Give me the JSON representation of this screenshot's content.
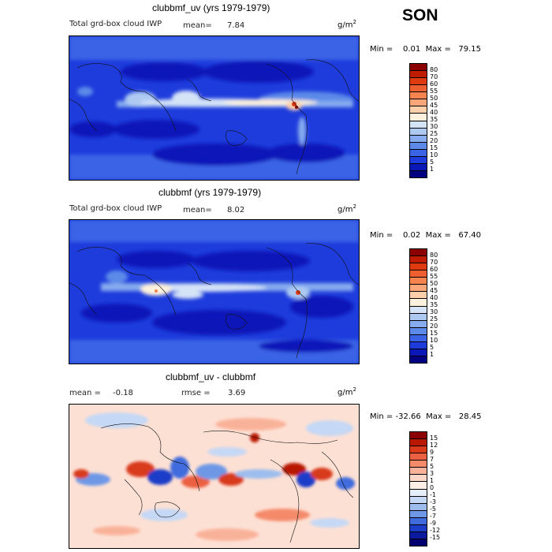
{
  "season": "SON",
  "panels": [
    {
      "title": "clubbmf_uv (yrs 1979-1979)",
      "variable": "Total grd-box cloud IWP",
      "mean_label": "mean=",
      "mean_value": "7.84",
      "unit": "g/m",
      "unit_exp": "2",
      "minmax": "Min =    0.01  Max =   79.15",
      "colorbar_labels": [
        "80",
        "70",
        "60",
        "55",
        "50",
        "45",
        "40",
        "35",
        "30",
        "25",
        "20",
        "15",
        "10",
        "5",
        "1"
      ],
      "colorbar_colors": [
        "#8b0000",
        "#c01c00",
        "#e03a10",
        "#ef6030",
        "#f7834e",
        "#fba678",
        "#fdcfaa",
        "#fdf0dc",
        "#d5e3f7",
        "#adc9f2",
        "#86abee",
        "#5b8ae9",
        "#3a63e6",
        "#1e3cdc",
        "#0b18b8",
        "#000080"
      ]
    },
    {
      "title": "clubbmf (yrs 1979-1979)",
      "variable": "Total grd-box cloud IWP",
      "mean_label": "mean=",
      "mean_value": "8.02",
      "unit": "g/m",
      "unit_exp": "2",
      "minmax": "Min =    0.02  Max =   67.40",
      "colorbar_labels": [
        "80",
        "70",
        "60",
        "55",
        "50",
        "45",
        "40",
        "35",
        "30",
        "25",
        "20",
        "15",
        "10",
        "5",
        "1"
      ],
      "colorbar_colors": [
        "#8b0000",
        "#c01c00",
        "#e03a10",
        "#ef6030",
        "#f7834e",
        "#fba678",
        "#fdcfaa",
        "#fdf0dc",
        "#d5e3f7",
        "#adc9f2",
        "#86abee",
        "#5b8ae9",
        "#3a63e6",
        "#1e3cdc",
        "#0b18b8",
        "#000080"
      ]
    },
    {
      "title": "clubbmf_uv - clubbmf",
      "mean_label": "mean =",
      "mean_value": "-0.18",
      "rmse_label": "rmse =",
      "rmse_value": "3.69",
      "unit": "g/m",
      "unit_exp": "2",
      "minmax": "Min = -32.66  Max =   28.45",
      "colorbar_labels": [
        "15",
        "12",
        "9",
        "7",
        "5",
        "3",
        "1",
        "0",
        "-1",
        "-3",
        "-5",
        "-7",
        "-9",
        "-12",
        "-15"
      ],
      "colorbar_colors": [
        "#8b0000",
        "#b81800",
        "#d83a1a",
        "#ea6040",
        "#f48a6a",
        "#f9b29a",
        "#fcd6c6",
        "#fdeee6",
        "#e6eefb",
        "#c5d8f5",
        "#9dbdee",
        "#6e98e6",
        "#3f6cdd",
        "#1b3dc8",
        "#0c1aa0",
        "#000070"
      ]
    }
  ]
}
